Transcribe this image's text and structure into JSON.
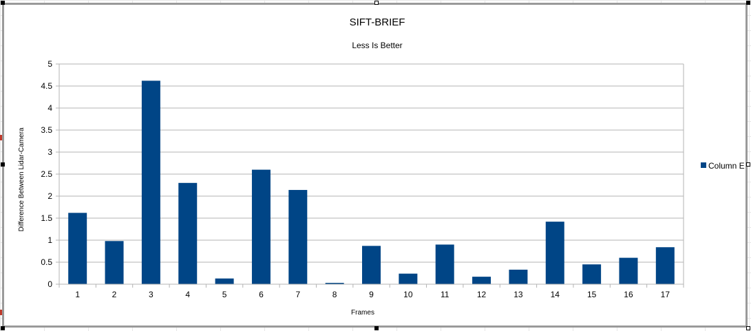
{
  "chart_data": {
    "type": "bar",
    "title": "SIFT-BRIEF",
    "subtitle": "Less Is Better",
    "xlabel": "Frames",
    "ylabel": "Difference Between Lidar-Camera",
    "categories": [
      "1",
      "2",
      "3",
      "4",
      "5",
      "6",
      "7",
      "8",
      "9",
      "10",
      "11",
      "12",
      "13",
      "14",
      "15",
      "16",
      "17"
    ],
    "series": [
      {
        "name": "Column E",
        "values": [
          1.62,
          0.98,
          4.62,
          2.3,
          0.13,
          2.6,
          2.14,
          0.03,
          0.87,
          0.24,
          0.9,
          0.17,
          0.33,
          1.42,
          0.45,
          0.6,
          0.84
        ]
      }
    ],
    "ylim": [
      0,
      5
    ],
    "yticks": [
      "0",
      "0.5",
      "1",
      "1.5",
      "2",
      "2.5",
      "3",
      "3.5",
      "4",
      "4.5",
      "5"
    ],
    "grid": true,
    "legend_position": "right",
    "bar_color": "#004586",
    "gridline_color": "#b3b3b3"
  }
}
